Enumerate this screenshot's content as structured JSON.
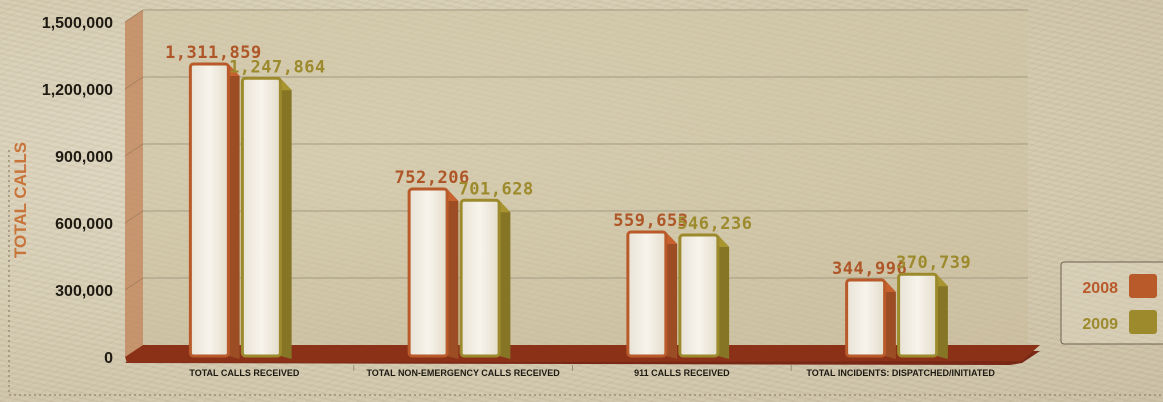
{
  "chart_data": {
    "type": "bar",
    "ylabel": "TOTAL CALLS",
    "ylim": [
      0,
      1500000
    ],
    "yticks": [
      "0",
      "300,000",
      "600,000",
      "900,000",
      "1,200,000",
      "1,500,000"
    ],
    "ytick_values": [
      0,
      300000,
      600000,
      900000,
      1200000,
      1500000
    ],
    "categories": [
      "TOTAL CALLS RECEIVED",
      "TOTAL NON-EMERGENCY CALLS RECEIVED",
      "911 CALLS RECEIVED",
      "TOTAL INCIDENTS: DISPATCHED/INITIATED"
    ],
    "series": [
      {
        "name": "2008",
        "color": "#b85a2a",
        "values": [
          1311859,
          752206,
          559653,
          344996
        ],
        "labels": [
          "1,311,859",
          "752,206",
          "559,653",
          "344,996"
        ]
      },
      {
        "name": "2009",
        "color": "#9c8a2c",
        "values": [
          1247864,
          701628,
          546236,
          370739
        ],
        "labels": [
          "1,247,864",
          "701,628",
          "546,236",
          "370,739"
        ]
      }
    ],
    "legend_position": "right",
    "grid": true
  }
}
